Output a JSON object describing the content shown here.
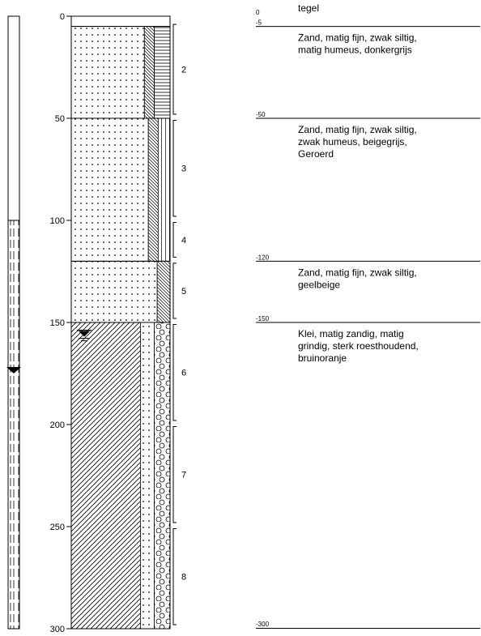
{
  "depth_axis": {
    "min": 0,
    "max": 300,
    "ticks": [
      "0",
      "50",
      "100",
      "150",
      "200",
      "250",
      "300"
    ]
  },
  "groundwater": {
    "pipe_filter_top_depth": 100,
    "pipe_level_depth": 173,
    "column_level_depth": 157,
    "colors": {
      "marker": "#000000"
    }
  },
  "layers": [
    {
      "top": 5,
      "bottom": 50,
      "top_label": "-5",
      "description": [
        "Zand, matig fijn, zwak siltig,",
        "matig humeus, donkergrijs"
      ],
      "symbols": [
        "dots-sand",
        "diagonal-silt",
        "horizontal-humus"
      ]
    },
    {
      "top": 50,
      "bottom": 120,
      "top_label": "-50",
      "description": [
        "Zand, matig fijn, zwak siltig,",
        "zwak humeus, beigegrijs,",
        "Geroerd"
      ],
      "symbols": [
        "dots-sand",
        "diagonal-silt",
        "vertical-humus"
      ]
    },
    {
      "top": 120,
      "bottom": 150,
      "top_label": "-120",
      "description": [
        "Zand, matig fijn, zwak siltig,",
        "geelbeige"
      ],
      "symbols": [
        "dots-sand",
        "diagonal-silt"
      ]
    },
    {
      "top": 150,
      "bottom": 300,
      "top_label": "-150",
      "description": [
        "Klei, matig zandig, matig",
        "grindig, sterk roesthoudend,",
        "bruinoranje"
      ],
      "symbols": [
        "diagonal-clay",
        "dots-sand",
        "circles-gravel"
      ]
    }
  ],
  "top_layer": {
    "depth_label": "0",
    "description": "tegel"
  },
  "bottom_depth_label": "-300",
  "samples": [
    {
      "id": "2",
      "top": 4,
      "bottom": 48
    },
    {
      "id": "3",
      "top": 51,
      "bottom": 98
    },
    {
      "id": "4",
      "top": 101,
      "bottom": 118
    },
    {
      "id": "5",
      "top": 121,
      "bottom": 148
    },
    {
      "id": "6",
      "top": 151,
      "bottom": 198
    },
    {
      "id": "7",
      "top": 201,
      "bottom": 248
    },
    {
      "id": "8",
      "top": 251,
      "bottom": 298
    }
  ]
}
